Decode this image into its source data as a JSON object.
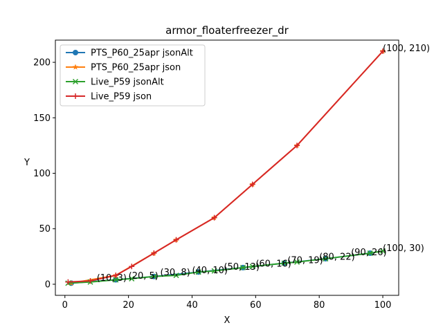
{
  "chart_data": {
    "type": "line",
    "title": "armor_floaterfreezer_dr",
    "xlabel": "X",
    "ylabel": "Y",
    "xlim": [
      -3,
      105
    ],
    "ylim": [
      -10,
      220
    ],
    "xticks": [
      0,
      20,
      40,
      60,
      80,
      100
    ],
    "yticks": [
      0,
      50,
      100,
      150,
      200
    ],
    "grid": false,
    "legend": "upper-left",
    "series": [
      {
        "name": "PTS_P60_25apr jsonAlt",
        "color": "#1f77b4",
        "marker": "circle",
        "x": [
          2,
          16,
          28,
          42,
          56,
          69,
          82,
          96
        ],
        "y": [
          1,
          4,
          7,
          11,
          15,
          19,
          23,
          28
        ]
      },
      {
        "name": "PTS_P60_25apr json",
        "color": "#ff7f0e",
        "marker": "star",
        "x": [
          2,
          16,
          28,
          35,
          47,
          59,
          73,
          100
        ],
        "y": [
          1,
          8,
          28,
          40,
          60,
          90,
          125,
          210
        ]
      },
      {
        "name": "Live_P59 jsonAlt",
        "color": "#2ca02c",
        "marker": "x",
        "x": [
          1,
          8,
          16,
          21,
          28,
          35,
          42,
          47,
          56,
          59,
          69,
          73,
          82,
          96,
          100
        ],
        "y": [
          1,
          2,
          4,
          5,
          7,
          8,
          11,
          12,
          15,
          16,
          19,
          20,
          23,
          28,
          30
        ]
      },
      {
        "name": "Live_P59 json",
        "color": "#d62728",
        "marker": "plus",
        "x": [
          1,
          8,
          16,
          21,
          28,
          35,
          47,
          59,
          73,
          100
        ],
        "y": [
          2,
          3,
          8,
          16,
          28,
          40,
          60,
          90,
          125,
          210
        ]
      }
    ],
    "annotations": [
      {
        "x": 10,
        "y": 3,
        "text": "(10, 3)"
      },
      {
        "x": 20,
        "y": 5,
        "text": "(20, 5)"
      },
      {
        "x": 30,
        "y": 8,
        "text": "(30, 8)"
      },
      {
        "x": 40,
        "y": 10,
        "text": "(40, 10)"
      },
      {
        "x": 50,
        "y": 13,
        "text": "(50, 13)"
      },
      {
        "x": 60,
        "y": 16,
        "text": "(60, 16)"
      },
      {
        "x": 70,
        "y": 19,
        "text": "(70, 19)"
      },
      {
        "x": 80,
        "y": 22,
        "text": "(80, 22)"
      },
      {
        "x": 90,
        "y": 26,
        "text": "(90, 26)"
      },
      {
        "x": 100,
        "y": 30,
        "text": "(100, 30)"
      },
      {
        "x": 100,
        "y": 210,
        "text": "(100, 210)"
      }
    ]
  }
}
